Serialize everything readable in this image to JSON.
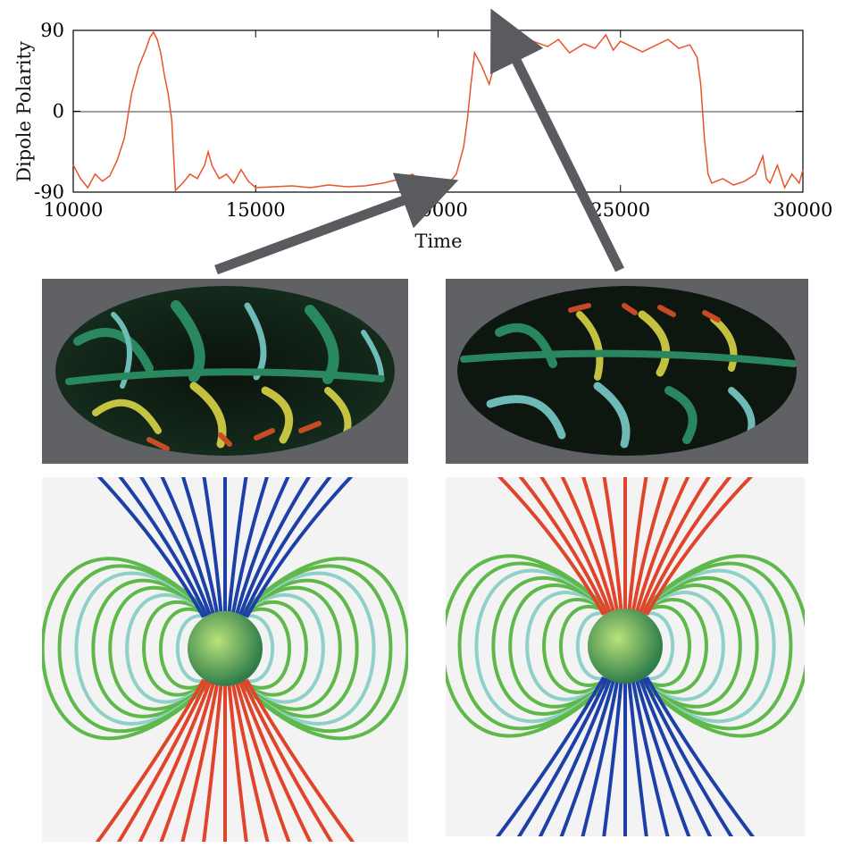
{
  "chart_data": {
    "type": "line",
    "title": "",
    "xlabel": "Time",
    "ylabel": "Dipole Polarity",
    "xlim": [
      10000,
      30000
    ],
    "ylim": [
      -90,
      90
    ],
    "x_ticks": [
      10000,
      15000,
      20000,
      25000,
      30000
    ],
    "y_ticks": [
      -90,
      0,
      90
    ],
    "grid": false,
    "line_color": "#e8542a",
    "series": [
      {
        "x": [
          10000,
          10200,
          10400,
          10600,
          10800,
          11000,
          11200,
          11400,
          11600,
          11800,
          12000,
          12100,
          12200,
          12300,
          12400,
          12500,
          12600,
          12700,
          12800,
          13000,
          13200,
          13400,
          13600,
          13700,
          13800,
          14000,
          14200,
          14400,
          14600,
          14800,
          15000,
          15500,
          16000,
          16500,
          17000,
          17500,
          18000,
          18500,
          19000,
          19300,
          19500,
          19700,
          20000,
          20300,
          20500,
          20700,
          20800,
          20900,
          21000,
          21200,
          21400,
          21600,
          21800,
          22000,
          22300,
          22600,
          23000,
          23300,
          23600,
          24000,
          24300,
          24600,
          24800,
          25000,
          25300,
          25600,
          26000,
          26300,
          26600,
          26900,
          27100,
          27200,
          27300,
          27400,
          27500,
          27800,
          28100,
          28400,
          28700,
          28900,
          29000,
          29100,
          29300,
          29500,
          29700,
          29900,
          30000
        ],
        "y": [
          -60,
          -75,
          -85,
          -70,
          -78,
          -72,
          -55,
          -30,
          20,
          50,
          70,
          82,
          88,
          80,
          65,
          40,
          20,
          -10,
          -88,
          -80,
          -70,
          -75,
          -60,
          -45,
          -60,
          -75,
          -70,
          -80,
          -65,
          -78,
          -85,
          -84,
          -83,
          -85,
          -82,
          -84,
          -83,
          -80,
          -75,
          -70,
          -78,
          -82,
          -85,
          -80,
          -70,
          -40,
          -10,
          30,
          65,
          50,
          30,
          60,
          80,
          88,
          70,
          78,
          72,
          80,
          65,
          75,
          70,
          85,
          68,
          78,
          72,
          66,
          74,
          80,
          70,
          74,
          60,
          30,
          -30,
          -70,
          -80,
          -75,
          -82,
          -78,
          -70,
          -50,
          -75,
          -80,
          -60,
          -85,
          -70,
          -80,
          -65
        ]
      }
    ],
    "annotations": [
      {
        "type": "arrow",
        "target_x": 19800,
        "target_y": -88,
        "source": "left map panel"
      },
      {
        "type": "arrow",
        "target_x": 21800,
        "target_y": 85,
        "source": "right map panel"
      }
    ]
  },
  "panels": {
    "map_left": {
      "description": "Hammer projection of radial field, reversed polarity",
      "colors": [
        "#000000",
        "#2f9a6d",
        "#7fd7d4",
        "#e6e04a",
        "#e8542a"
      ]
    },
    "map_right": {
      "description": "Hammer projection of radial field, normal polarity",
      "colors": [
        "#000000",
        "#2f9a6d",
        "#7fd7d4",
        "#e6e04a",
        "#e8542a"
      ]
    },
    "field_left": {
      "colors": {
        "north": "#1d3fa8",
        "south": "#e0442a",
        "equator": "#5fb84a"
      }
    },
    "field_right": {
      "colors": {
        "north": "#e0442a",
        "south": "#1d3fa8",
        "equator": "#5fb84a"
      }
    }
  }
}
